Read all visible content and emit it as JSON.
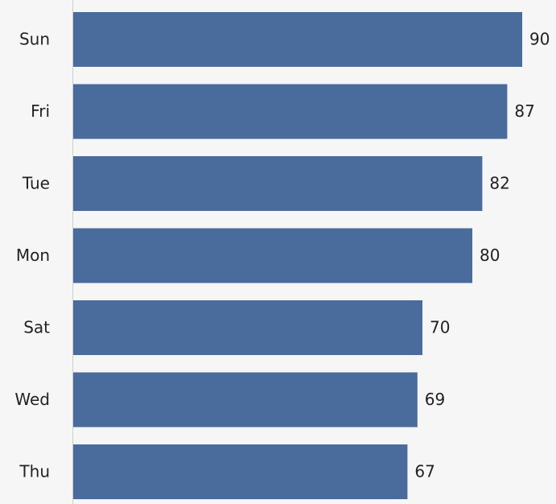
{
  "chart_data": {
    "type": "bar",
    "orientation": "horizontal",
    "categories": [
      "Sun",
      "Fri",
      "Tue",
      "Mon",
      "Sat",
      "Wed",
      "Thu"
    ],
    "values": [
      90,
      87,
      82,
      80,
      70,
      69,
      67
    ],
    "color": "#4a6c9c"
  }
}
